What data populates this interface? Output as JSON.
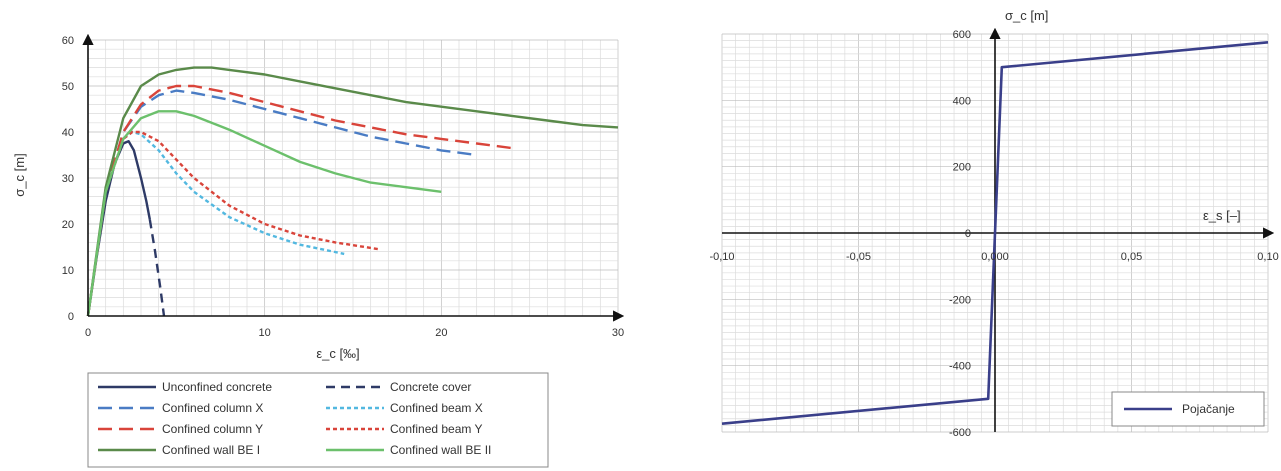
{
  "chart_data": [
    {
      "type": "line",
      "xlabel": "ε_c [‰]",
      "ylabel": "σ_c [m]",
      "xlim": [
        0,
        30
      ],
      "ylim": [
        0,
        60
      ],
      "xticks": [
        "0",
        "10",
        "20",
        "30"
      ],
      "yticks": [
        "0",
        "10",
        "20",
        "30",
        "40",
        "50",
        "60"
      ],
      "grid": true,
      "legend_position": "bottom",
      "series": [
        {
          "name": "Unconfined concrete",
          "color": "#2e3a66",
          "dash": "solid",
          "x": [
            0,
            0.5,
            1.0,
            1.5,
            2.0,
            2.3,
            2.6,
            3.0,
            3.3,
            3.5
          ],
          "y": [
            0,
            13,
            25,
            33,
            37.5,
            38,
            36,
            30,
            25,
            21
          ]
        },
        {
          "name": "Concrete cover",
          "color": "#2e3a66",
          "dash": "mid",
          "x": [
            3.5,
            3.8,
            4.1,
            4.3
          ],
          "y": [
            21,
            14,
            6,
            0
          ]
        },
        {
          "name": "Confined column X",
          "color": "#4a7cc4",
          "dash": "long",
          "x": [
            0,
            1,
            2,
            3,
            4,
            5,
            6,
            8,
            10,
            12,
            14,
            16,
            18,
            20,
            22
          ],
          "y": [
            0,
            27,
            40,
            45.5,
            48,
            49,
            48.5,
            47,
            45,
            43,
            41,
            39,
            37.5,
            36,
            35
          ]
        },
        {
          "name": "Confined beam X",
          "color": "#52b8e0",
          "dash": "dot",
          "x": [
            0,
            1,
            2,
            2.5,
            3,
            4,
            5,
            6,
            8,
            10,
            12,
            14.5
          ],
          "y": [
            0,
            27,
            38.5,
            40,
            39.5,
            36,
            31,
            27,
            21.5,
            18,
            15.5,
            13.5
          ]
        },
        {
          "name": "Confined column Y",
          "color": "#d9443a",
          "dash": "long",
          "x": [
            0,
            1,
            2,
            3,
            4,
            5,
            6,
            8,
            10,
            12,
            14,
            16,
            18,
            20,
            22,
            24
          ],
          "y": [
            0,
            27,
            40,
            46,
            49,
            50,
            50,
            48.5,
            46.5,
            44.5,
            42.5,
            41,
            39.5,
            38.5,
            37.5,
            36.5
          ]
        },
        {
          "name": "Confined beam Y",
          "color": "#d9443a",
          "dash": "dot",
          "x": [
            0,
            1,
            2,
            2.5,
            3,
            4,
            5,
            6,
            8,
            10,
            12,
            14,
            16.5
          ],
          "y": [
            0,
            27,
            38.5,
            40,
            40,
            38,
            34,
            30,
            24,
            20,
            17.5,
            16,
            14.5
          ]
        },
        {
          "name": "Confined wall BE I",
          "color": "#5a8a4a",
          "dash": "solid",
          "x": [
            0,
            1,
            2,
            3,
            4,
            5,
            6,
            7,
            8,
            10,
            12,
            14,
            16,
            18,
            20,
            22,
            24,
            26,
            28,
            30
          ],
          "y": [
            0,
            28,
            43,
            50,
            52.5,
            53.5,
            54,
            54,
            53.5,
            52.5,
            51,
            49.5,
            48,
            46.5,
            45.5,
            44.5,
            43.5,
            42.5,
            41.5,
            41
          ]
        },
        {
          "name": "Confined wall BE II",
          "color": "#6cc06c",
          "dash": "solid",
          "x": [
            0,
            1,
            2,
            3,
            4,
            5,
            6,
            8,
            10,
            12,
            14,
            16,
            18,
            20
          ],
          "y": [
            0,
            27,
            38.5,
            43,
            44.5,
            44.5,
            43.5,
            40.5,
            37,
            33.5,
            31,
            29,
            28,
            27
          ]
        }
      ]
    },
    {
      "type": "line",
      "xlabel": "ε_s [–]",
      "ylabel": "σ_c [m]",
      "xlim": [
        -0.1,
        0.1
      ],
      "ylim": [
        -600,
        600
      ],
      "xticks": [
        "-0,10",
        "-0,05",
        "0,000",
        "0,05",
        "0,10"
      ],
      "yticks": [
        "-600",
        "-400",
        "-200",
        "0",
        "200",
        "400",
        "600"
      ],
      "grid": true,
      "legend_position": "bottom-right",
      "series": [
        {
          "name": "Pojačanje",
          "color": "#3a3f8a",
          "dash": "solid",
          "x": [
            -0.1,
            -0.0025,
            0.0025,
            0.1
          ],
          "y": [
            -575,
            -500,
            500,
            575
          ]
        }
      ]
    }
  ]
}
